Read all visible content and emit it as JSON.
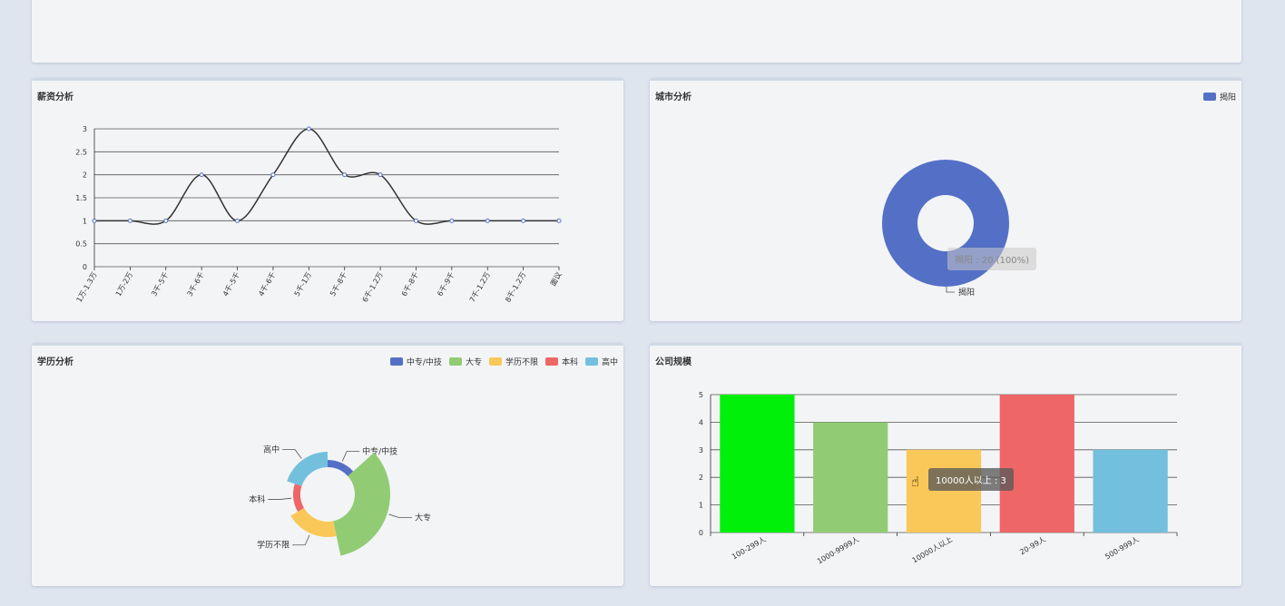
{
  "colors": {
    "blue": "#5470c6",
    "green": "#91cc75",
    "yellow": "#fac858",
    "red": "#ee6666",
    "cyan": "#73c0de",
    "lime": "#00f00a",
    "line": "#333333"
  },
  "cursor_icon": "hand-pointer-icon",
  "chart_data": [
    {
      "id": "salary",
      "type": "line",
      "title": "薪资分析",
      "categories": [
        "1万-1.3万",
        "1万-2万",
        "3千-5千",
        "3千-6千",
        "4千-5千",
        "4千-6千",
        "5千-1万",
        "5千-8千",
        "6千-1.2万",
        "6千-8千",
        "6千-9千",
        "7千-1.2万",
        "8千-1.2万",
        "面议"
      ],
      "values": [
        1,
        1,
        1,
        2,
        1,
        2,
        3,
        2,
        2,
        1,
        1,
        1,
        1,
        1
      ],
      "ylim": [
        0,
        3
      ],
      "yticks": [
        "0",
        "0.5",
        "1",
        "1.5",
        "2",
        "2.5",
        "3"
      ],
      "smooth": true,
      "grid": true
    },
    {
      "id": "city",
      "type": "pie",
      "title": "城市分析",
      "legend": [
        "揭阳"
      ],
      "slices": [
        {
          "name": "揭阳",
          "value": 20
        }
      ],
      "tooltip": "揭阳 : 20 (100%)",
      "legend_position": "top-right"
    },
    {
      "id": "education",
      "type": "pie",
      "title": "学历分析",
      "rose": true,
      "legend": [
        "中专/中技",
        "大专",
        "学历不限",
        "本科",
        "高中"
      ],
      "slices": [
        {
          "name": "中专/中技",
          "value": 2
        },
        {
          "name": "大专",
          "value": 5
        },
        {
          "name": "学历不限",
          "value": 3
        },
        {
          "name": "本科",
          "value": 2
        },
        {
          "name": "高中",
          "value": 3
        }
      ],
      "legend_position": "top-right"
    },
    {
      "id": "scale",
      "type": "bar",
      "title": "公司规模",
      "categories": [
        "100-299人",
        "1000-9999人",
        "10000人以上",
        "20-99人",
        "500-999人"
      ],
      "values": [
        5,
        4,
        3,
        5,
        3
      ],
      "ylim": [
        0,
        5
      ],
      "yticks": [
        "0",
        "1",
        "2",
        "3",
        "4",
        "5"
      ],
      "tooltip": "10000人以上 : 3",
      "grid": true
    }
  ]
}
